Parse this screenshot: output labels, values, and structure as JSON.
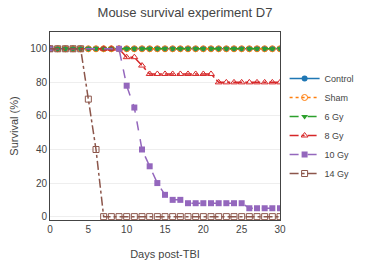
{
  "chart_data": {
    "type": "line",
    "title": "Mouse survival experiment D7",
    "x_label": "Days post-TBI",
    "y_label": "Survival (%)",
    "xlim": [
      0,
      30
    ],
    "ylim": [
      -2,
      110
    ],
    "xticks": [
      0,
      5,
      10,
      15,
      20,
      25,
      30
    ],
    "yticks": [
      0,
      20,
      40,
      60,
      80,
      100
    ],
    "grid": "y",
    "legend": "right",
    "series": [
      {
        "name": "Control",
        "line_style": "solid",
        "marker": "circle",
        "x": [
          0,
          1,
          2,
          3,
          4,
          5,
          6,
          7,
          8,
          9,
          10,
          11,
          12,
          13,
          14,
          15,
          16,
          17,
          18,
          19,
          20,
          21,
          22,
          23,
          24,
          25,
          26,
          27,
          28,
          29,
          30
        ],
        "values": [
          100,
          100,
          100,
          100,
          100,
          100,
          100,
          100,
          100,
          100,
          100,
          100,
          100,
          100,
          100,
          100,
          100,
          100,
          100,
          100,
          100,
          100,
          100,
          100,
          100,
          100,
          100,
          100,
          100,
          100,
          100
        ]
      },
      {
        "name": "Sham",
        "line_style": "dot",
        "marker": "circle-open",
        "x": [
          0,
          1,
          2,
          3,
          4,
          5,
          6,
          7,
          8,
          9,
          10,
          11,
          12,
          13,
          14,
          15,
          16,
          17,
          18,
          19,
          20,
          21,
          22,
          23,
          24,
          25,
          26,
          27,
          28,
          29,
          30
        ],
        "values": [
          100,
          100,
          100,
          100,
          100,
          100,
          100,
          100,
          100,
          100,
          100,
          100,
          100,
          100,
          100,
          100,
          100,
          100,
          100,
          100,
          100,
          100,
          100,
          100,
          100,
          100,
          100,
          100,
          100,
          100,
          100
        ]
      },
      {
        "name": "6 Gy",
        "line_style": "dash",
        "marker": "triangle-down",
        "x": [
          0,
          1,
          2,
          3,
          4,
          5,
          6,
          7,
          8,
          9,
          10,
          11,
          12,
          13,
          14,
          15,
          16,
          17,
          18,
          19,
          20,
          21,
          22,
          23,
          24,
          25,
          26,
          27,
          28,
          29,
          30
        ],
        "values": [
          100,
          100,
          100,
          100,
          100,
          100,
          100,
          100,
          100,
          100,
          100,
          100,
          100,
          100,
          100,
          100,
          100,
          100,
          100,
          100,
          100,
          100,
          100,
          100,
          100,
          100,
          100,
          100,
          100,
          100,
          100
        ]
      },
      {
        "name": "8 Gy",
        "line_style": "dashdot",
        "marker": "triangle-up-open",
        "x": [
          0,
          7,
          8,
          9,
          10,
          11,
          12,
          13,
          14,
          15,
          16,
          17,
          18,
          19,
          20,
          21,
          22,
          23,
          24,
          25,
          26,
          27,
          28,
          29,
          30
        ],
        "values": [
          100,
          100,
          100,
          100,
          95,
          95,
          90,
          85,
          85,
          85,
          85,
          85,
          85,
          85,
          85,
          85,
          80,
          80,
          80,
          80,
          80,
          80,
          80,
          80,
          80
        ]
      },
      {
        "name": "10 Gy",
        "line_style": "dash",
        "marker": "square",
        "x": [
          0,
          9,
          10,
          11,
          12,
          13,
          14,
          15,
          16,
          17,
          18,
          19,
          20,
          21,
          22,
          23,
          24,
          25,
          26,
          27,
          28,
          29,
          30
        ],
        "values": [
          100,
          100,
          78,
          65,
          40,
          30,
          20,
          13,
          10,
          10,
          8,
          8,
          8,
          8,
          8,
          8,
          8,
          8,
          5,
          5,
          5,
          5,
          5
        ]
      },
      {
        "name": "14 Gy",
        "line_style": "dashdot",
        "marker": "square-open",
        "x": [
          0,
          1,
          2,
          3,
          4,
          5,
          6,
          7,
          8,
          9,
          10,
          11,
          12,
          13,
          14,
          15,
          16,
          17,
          18,
          19,
          20,
          21,
          22,
          23,
          24,
          25,
          26,
          27,
          28,
          29,
          30
        ],
        "values": [
          100,
          100,
          100,
          100,
          100,
          70,
          40,
          0,
          0,
          0,
          0,
          0,
          0,
          0,
          0,
          0,
          0,
          0,
          0,
          0,
          0,
          0,
          0,
          0,
          0,
          0,
          0,
          0,
          0,
          0,
          0
        ]
      }
    ]
  }
}
